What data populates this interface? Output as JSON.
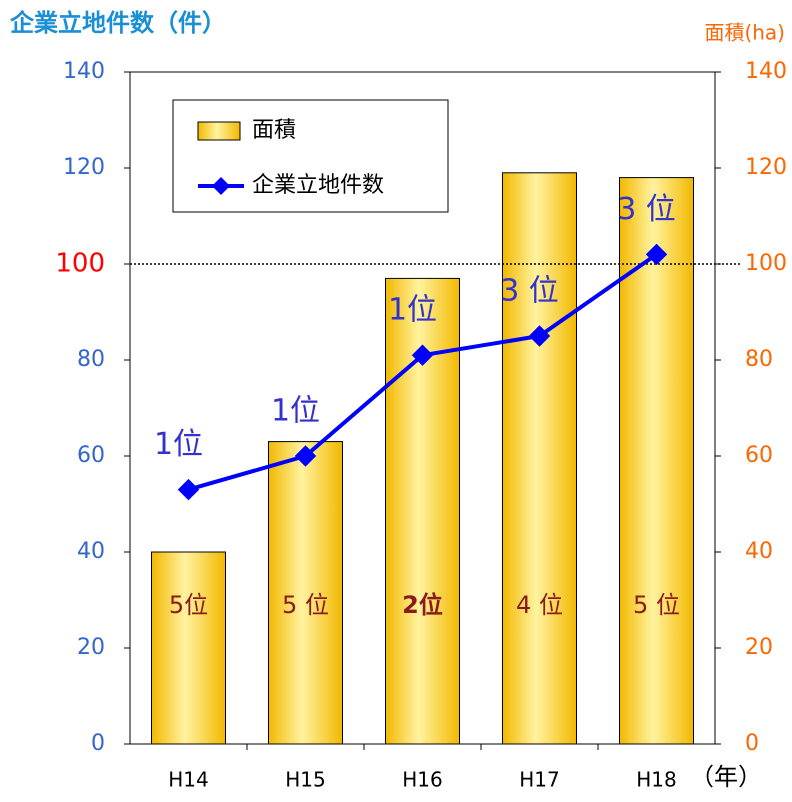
{
  "chart_data": {
    "type": "bar_line",
    "y_axis_label": "企業立地件数（件）",
    "y2_axis_label": "面積(ha)",
    "x_axis_label": "（年）",
    "categories": [
      "H14",
      "H15",
      "H16",
      "H17",
      "H18"
    ],
    "series": [
      {
        "name": "面積",
        "type": "bar",
        "axis": "y2",
        "color": "#f5c518",
        "values": [
          40,
          63,
          97,
          119,
          118
        ],
        "annotations": [
          "5位",
          "5 位",
          "2位",
          "4 位",
          "5 位"
        ],
        "annotation_bold": [
          false,
          false,
          true,
          false,
          false
        ],
        "annotation_color": "#8b1a1a"
      },
      {
        "name": "企業立地件数",
        "type": "line",
        "axis": "y",
        "color": "#0000ff",
        "values": [
          53,
          60,
          81,
          85,
          102
        ],
        "annotations": [
          "1位",
          "1位",
          "1位",
          "3 位",
          "3 位"
        ],
        "annotation_color": "#3333cc"
      }
    ],
    "ylim": [
      0,
      140
    ],
    "yticks": [
      0,
      20,
      40,
      60,
      80,
      100,
      120,
      140
    ],
    "ytick_color": "#3366cc",
    "y2lim": [
      0,
      140
    ],
    "y2ticks": [
      0,
      20,
      40,
      60,
      80,
      100,
      120,
      140
    ],
    "y2tick_color": "#ff6600",
    "reference_line": 100,
    "reference_tick_color": "#ff0000",
    "legend": "upper left"
  }
}
